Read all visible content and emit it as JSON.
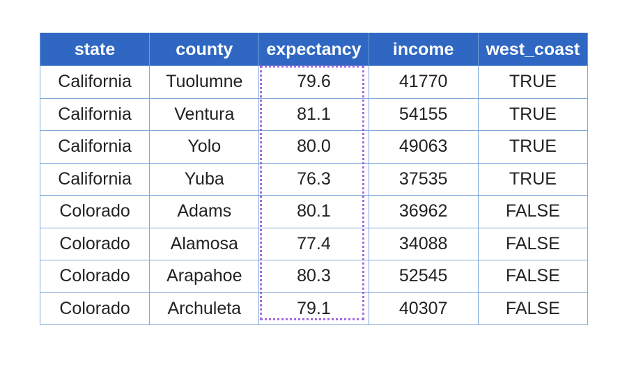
{
  "table": {
    "columns": [
      "state",
      "county",
      "expectancy",
      "income",
      "west_coast"
    ],
    "rows": [
      [
        "California",
        "Tuolumne",
        "79.6",
        "41770",
        "TRUE"
      ],
      [
        "California",
        "Ventura",
        "81.1",
        "54155",
        "TRUE"
      ],
      [
        "California",
        "Yolo",
        "80.0",
        "49063",
        "TRUE"
      ],
      [
        "California",
        "Yuba",
        "76.3",
        "37535",
        "TRUE"
      ],
      [
        "Colorado",
        "Adams",
        "80.1",
        "36962",
        "FALSE"
      ],
      [
        "Colorado",
        "Alamosa",
        "77.4",
        "34088",
        "FALSE"
      ],
      [
        "Colorado",
        "Arapahoe",
        "80.3",
        "52545",
        "FALSE"
      ],
      [
        "Colorado",
        "Archuleta",
        "79.1",
        "40307",
        "FALSE"
      ]
    ]
  },
  "highlight": {
    "column": "expectancy",
    "color": "#a46be0"
  },
  "colors": {
    "header_bg": "#2f67c3",
    "header_text": "#ffffff",
    "grid_line": "#7fa9d9"
  }
}
